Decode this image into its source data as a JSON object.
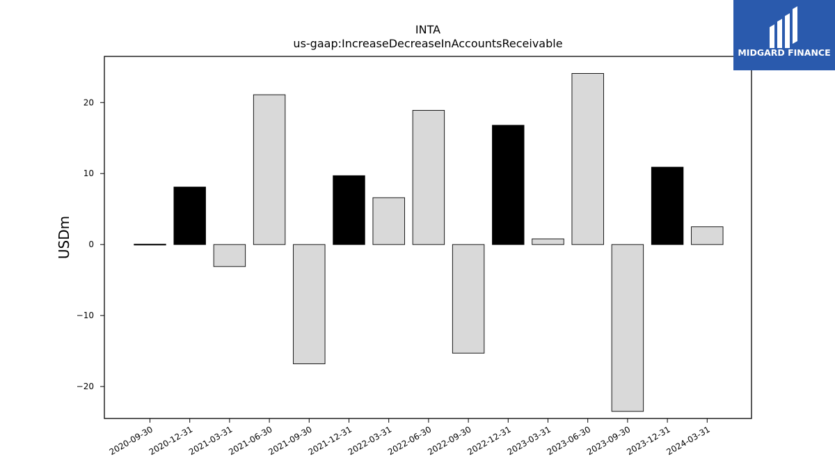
{
  "chart_data": {
    "type": "bar",
    "title": "INTA",
    "subtitle": "us-gaap:IncreaseDecreaseInAccountsReceivable",
    "xlabel": "",
    "ylabel": "USDm",
    "ylim": [
      -24.5,
      26.5
    ],
    "yticks": [
      -20,
      -10,
      0,
      10,
      20
    ],
    "ytick_labels": [
      "−20",
      "−10",
      "0",
      "10",
      "20"
    ],
    "grid": false,
    "categories": [
      "2020-09-30",
      "2020-12-31",
      "2021-03-31",
      "2021-06-30",
      "2021-09-30",
      "2021-12-31",
      "2022-03-31",
      "2022-06-30",
      "2022-09-30",
      "2022-12-31",
      "2023-03-31",
      "2023-06-30",
      "2023-09-30",
      "2023-12-31",
      "2024-03-31"
    ],
    "values": [
      0.05,
      8.1,
      -3.1,
      21.1,
      -16.8,
      9.7,
      6.6,
      18.9,
      -15.3,
      16.8,
      0.8,
      24.1,
      -23.5,
      10.9,
      2.5
    ],
    "bar_colors": [
      "#000000",
      "#000000",
      "#d9d9d9",
      "#d9d9d9",
      "#d9d9d9",
      "#000000",
      "#d9d9d9",
      "#d9d9d9",
      "#d9d9d9",
      "#000000",
      "#d9d9d9",
      "#d9d9d9",
      "#d9d9d9",
      "#000000",
      "#d9d9d9"
    ],
    "edge_color": "#000000"
  },
  "logo": {
    "text": "MIDGARD FINANCE",
    "background": "#2a5aad",
    "color": "#ffffff"
  }
}
